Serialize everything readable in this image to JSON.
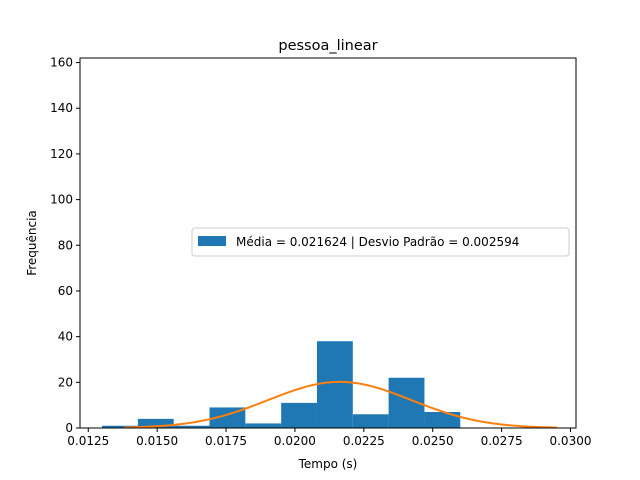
{
  "chart_data": {
    "type": "bar",
    "title": "pessoa_linear",
    "xlabel": "Tempo (s)",
    "ylabel": "Frequência",
    "xlim": [
      0.0122,
      0.0302
    ],
    "ylim": [
      0,
      162
    ],
    "xticks": [
      0.0125,
      0.015,
      0.0175,
      0.02,
      0.0225,
      0.025,
      0.0275,
      0.03
    ],
    "xtick_labels": [
      "0.0125",
      "0.0150",
      "0.0175",
      "0.0200",
      "0.0225",
      "0.0250",
      "0.0275",
      "0.0300"
    ],
    "yticks": [
      0,
      20,
      40,
      60,
      80,
      100,
      120,
      140,
      160
    ],
    "ytick_labels": [
      "0",
      "20",
      "40",
      "60",
      "80",
      "100",
      "120",
      "140",
      "160"
    ],
    "histogram": {
      "bin_edges": [
        0.013,
        0.0143,
        0.0156,
        0.0169,
        0.0182,
        0.0195,
        0.0208,
        0.0221,
        0.0234,
        0.0247,
        0.026
      ],
      "counts": [
        1,
        4,
        1,
        9,
        2,
        11,
        38,
        6,
        22,
        7
      ],
      "color": "#1f77b4"
    },
    "normal_curve": {
      "mean": 0.021624,
      "std": 0.002594,
      "x_start": 0.0138,
      "x_end": 0.0295,
      "color": "#ff7f0e"
    },
    "legend": {
      "entries": [
        "Média = 0.021624 | Desvio Padrão = 0.002594"
      ],
      "placement": "center-right"
    },
    "grid": false
  }
}
